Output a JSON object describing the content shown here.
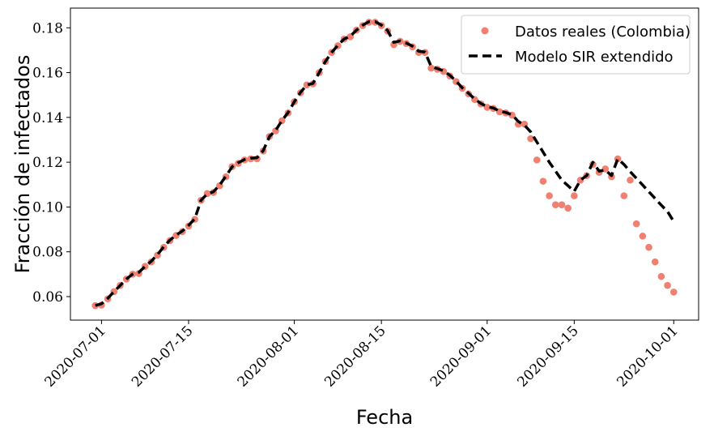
{
  "chart_data": {
    "type": "line",
    "title": "",
    "xlabel": "Fecha",
    "ylabel": "Fracción de infectados",
    "xlim": [
      "2020-06-26",
      "2020-10-05"
    ],
    "ylim": [
      0.0495,
      0.1888
    ],
    "x_ticks": [
      "2020-07-01",
      "2020-07-15",
      "2020-08-01",
      "2020-08-15",
      "2020-09-01",
      "2020-09-15",
      "2020-10-01"
    ],
    "y_ticks": [
      0.06,
      0.08,
      0.1,
      0.12,
      0.14,
      0.16,
      0.18
    ],
    "y_tick_labels": [
      "0.06",
      "0.08",
      "0.10",
      "0.12",
      "0.14",
      "0.16",
      "0.18"
    ],
    "grid": false,
    "legend_position": "top-right",
    "series": [
      {
        "name": "Datos reales (Colombia)",
        "style": "markers",
        "color": "#f08070",
        "x": [
          "2020-06-30",
          "2020-07-01",
          "2020-07-02",
          "2020-07-03",
          "2020-07-04",
          "2020-07-05",
          "2020-07-06",
          "2020-07-07",
          "2020-07-08",
          "2020-07-09",
          "2020-07-10",
          "2020-07-11",
          "2020-07-12",
          "2020-07-13",
          "2020-07-14",
          "2020-07-15",
          "2020-07-16",
          "2020-07-17",
          "2020-07-18",
          "2020-07-19",
          "2020-07-20",
          "2020-07-21",
          "2020-07-22",
          "2020-07-23",
          "2020-07-24",
          "2020-07-25",
          "2020-07-26",
          "2020-07-27",
          "2020-07-28",
          "2020-07-29",
          "2020-07-30",
          "2020-07-31",
          "2020-08-01",
          "2020-08-02",
          "2020-08-03",
          "2020-08-04",
          "2020-08-05",
          "2020-08-06",
          "2020-08-07",
          "2020-08-08",
          "2020-08-09",
          "2020-08-10",
          "2020-08-11",
          "2020-08-12",
          "2020-08-13",
          "2020-08-14",
          "2020-08-15",
          "2020-08-16",
          "2020-08-17",
          "2020-08-18",
          "2020-08-19",
          "2020-08-20",
          "2020-08-21",
          "2020-08-22",
          "2020-08-23",
          "2020-08-24",
          "2020-08-25",
          "2020-08-26",
          "2020-08-27",
          "2020-08-28",
          "2020-08-29",
          "2020-08-30",
          "2020-08-31",
          "2020-09-01",
          "2020-09-02",
          "2020-09-03",
          "2020-09-04",
          "2020-09-05",
          "2020-09-06",
          "2020-09-07",
          "2020-09-08",
          "2020-09-09",
          "2020-09-10",
          "2020-09-11",
          "2020-09-12",
          "2020-09-13",
          "2020-09-14",
          "2020-09-15",
          "2020-09-16",
          "2020-09-17",
          "2020-09-18",
          "2020-09-19",
          "2020-09-20",
          "2020-09-21",
          "2020-09-22",
          "2020-09-23",
          "2020-09-24",
          "2020-09-25",
          "2020-09-26",
          "2020-09-27",
          "2020-09-28",
          "2020-09-29",
          "2020-09-30",
          "2020-10-01"
        ],
        "y": [
          0.056,
          0.0562,
          0.059,
          0.0622,
          0.065,
          0.0678,
          0.07,
          0.0703,
          0.0735,
          0.0755,
          0.0785,
          0.082,
          0.085,
          0.0873,
          0.089,
          0.0915,
          0.0945,
          0.103,
          0.106,
          0.1065,
          0.1095,
          0.1135,
          0.118,
          0.1195,
          0.121,
          0.1215,
          0.1215,
          0.125,
          0.1315,
          0.134,
          0.1385,
          0.142,
          0.147,
          0.151,
          0.1545,
          0.155,
          0.16,
          0.165,
          0.169,
          0.172,
          0.175,
          0.176,
          0.179,
          0.181,
          0.1825,
          0.1825,
          0.181,
          0.1785,
          0.1725,
          0.174,
          0.173,
          0.1715,
          0.169,
          0.169,
          0.162,
          0.1615,
          0.1605,
          0.1585,
          0.156,
          0.153,
          0.1505,
          0.148,
          0.146,
          0.1445,
          0.144,
          0.1425,
          0.142,
          0.141,
          0.137,
          0.137,
          0.1305,
          0.121,
          0.1115,
          0.105,
          0.101,
          0.101,
          0.0995,
          0.105,
          0.112,
          0.114,
          0.119,
          0.1155,
          0.117,
          0.1135,
          0.1215,
          0.105,
          0.112,
          0.0925,
          0.087,
          0.082,
          0.0755,
          0.069,
          0.065,
          0.062
        ]
      },
      {
        "name": "Modelo SIR extendido",
        "style": "dashed",
        "color": "#000000",
        "x": [
          "2020-06-30",
          "2020-07-01",
          "2020-07-02",
          "2020-07-03",
          "2020-07-04",
          "2020-07-05",
          "2020-07-06",
          "2020-07-07",
          "2020-07-08",
          "2020-07-09",
          "2020-07-10",
          "2020-07-11",
          "2020-07-12",
          "2020-07-13",
          "2020-07-14",
          "2020-07-15",
          "2020-07-16",
          "2020-07-17",
          "2020-07-18",
          "2020-07-19",
          "2020-07-20",
          "2020-07-21",
          "2020-07-22",
          "2020-07-23",
          "2020-07-24",
          "2020-07-25",
          "2020-07-26",
          "2020-07-27",
          "2020-07-28",
          "2020-07-29",
          "2020-07-30",
          "2020-07-31",
          "2020-08-01",
          "2020-08-02",
          "2020-08-03",
          "2020-08-04",
          "2020-08-05",
          "2020-08-06",
          "2020-08-07",
          "2020-08-08",
          "2020-08-09",
          "2020-08-10",
          "2020-08-11",
          "2020-08-12",
          "2020-08-13",
          "2020-08-14",
          "2020-08-15",
          "2020-08-16",
          "2020-08-17",
          "2020-08-18",
          "2020-08-19",
          "2020-08-20",
          "2020-08-21",
          "2020-08-22",
          "2020-08-23",
          "2020-08-24",
          "2020-08-25",
          "2020-08-26",
          "2020-08-27",
          "2020-08-28",
          "2020-08-29",
          "2020-08-30",
          "2020-08-31",
          "2020-09-01",
          "2020-09-02",
          "2020-09-03",
          "2020-09-04",
          "2020-09-05",
          "2020-09-06",
          "2020-09-07",
          "2020-09-08",
          "2020-09-09",
          "2020-09-10",
          "2020-09-11",
          "2020-09-12",
          "2020-09-13",
          "2020-09-14",
          "2020-09-15",
          "2020-09-16",
          "2020-09-17",
          "2020-09-18",
          "2020-09-19",
          "2020-09-20",
          "2020-09-21",
          "2020-09-22",
          "2020-09-23",
          "2020-09-24",
          "2020-09-25",
          "2020-09-26",
          "2020-09-27",
          "2020-09-28",
          "2020-09-29",
          "2020-09-30",
          "2020-10-01"
        ],
        "y": [
          0.056,
          0.0568,
          0.0592,
          0.0622,
          0.065,
          0.0678,
          0.07,
          0.0708,
          0.0735,
          0.0758,
          0.0788,
          0.0822,
          0.0852,
          0.0875,
          0.0893,
          0.0918,
          0.0948,
          0.103,
          0.1058,
          0.1068,
          0.1098,
          0.1138,
          0.118,
          0.1198,
          0.1212,
          0.1218,
          0.122,
          0.1252,
          0.1315,
          0.1342,
          0.1385,
          0.1422,
          0.147,
          0.1512,
          0.1545,
          0.1552,
          0.16,
          0.165,
          0.169,
          0.1722,
          0.175,
          0.1762,
          0.179,
          0.1812,
          0.1828,
          0.1828,
          0.1812,
          0.1788,
          0.1735,
          0.1742,
          0.1732,
          0.1718,
          0.1695,
          0.1692,
          0.1628,
          0.1618,
          0.1608,
          0.1588,
          0.1562,
          0.1532,
          0.1508,
          0.1482,
          0.1462,
          0.1448,
          0.1442,
          0.1428,
          0.1422,
          0.1412,
          0.1382,
          0.1365,
          0.1335,
          0.129,
          0.1245,
          0.12,
          0.116,
          0.112,
          0.1095,
          0.107,
          0.112,
          0.114,
          0.12,
          0.116,
          0.1165,
          0.114,
          0.1215,
          0.119,
          0.1158,
          0.1128,
          0.1098,
          0.1068,
          0.1038,
          0.1008,
          0.098,
          0.0935
        ]
      }
    ]
  }
}
